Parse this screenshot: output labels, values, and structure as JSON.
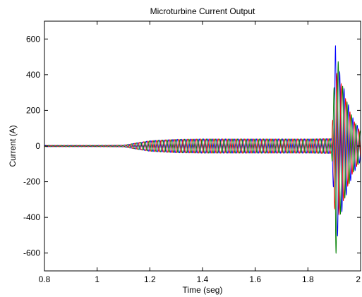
{
  "chart_data": {
    "type": "line",
    "title": "Microturbine Current Output",
    "xlabel": "Time (seg)",
    "ylabel": "Current (A)",
    "xlim": [
      0.8,
      2.0
    ],
    "ylim": [
      -700,
      700
    ],
    "xticks": [
      0.8,
      1,
      1.2,
      1.4,
      1.6,
      1.8,
      2
    ],
    "xtick_labels": [
      "0.8",
      "1",
      "1.2",
      "1.4",
      "1.6",
      "1.8",
      "2"
    ],
    "yticks": [
      600,
      400,
      200,
      0,
      -200,
      -400,
      -600
    ],
    "ytick_labels": [
      "600",
      "400",
      "200",
      "0",
      "-200",
      "-400",
      "-600"
    ],
    "grid": false,
    "legend": false,
    "series": [
      {
        "color": "#0000ff",
        "x": [
          0.8,
          1.0,
          1.1,
          1.15,
          1.2,
          1.3,
          1.4,
          1.5,
          1.6,
          1.7,
          1.8,
          1.89,
          1.9,
          1.905,
          1.92,
          1.95,
          1.97,
          2.0
        ],
        "amplitude": [
          4,
          4,
          5,
          18,
          30,
          38,
          40,
          40,
          40,
          40,
          40,
          42,
          340,
          590,
          420,
          250,
          160,
          85
        ]
      },
      {
        "color": "#ff0000",
        "x": [
          0.8,
          1.0,
          1.1,
          1.15,
          1.2,
          1.3,
          1.4,
          1.5,
          1.6,
          1.7,
          1.8,
          1.89,
          1.9,
          1.905,
          1.92,
          1.95,
          1.97,
          2.0
        ],
        "amplitude": [
          4,
          4,
          5,
          18,
          30,
          38,
          40,
          40,
          40,
          40,
          40,
          42,
          320,
          420,
          380,
          230,
          150,
          80
        ]
      },
      {
        "color": "#008000",
        "x": [
          0.8,
          1.0,
          1.1,
          1.15,
          1.2,
          1.3,
          1.4,
          1.5,
          1.6,
          1.7,
          1.8,
          1.89,
          1.9,
          1.905,
          1.92,
          1.95,
          1.97,
          2.0
        ],
        "amplitude": [
          4,
          4,
          5,
          18,
          30,
          38,
          40,
          40,
          40,
          40,
          40,
          42,
          360,
          630,
          400,
          240,
          155,
          80
        ]
      }
    ]
  }
}
